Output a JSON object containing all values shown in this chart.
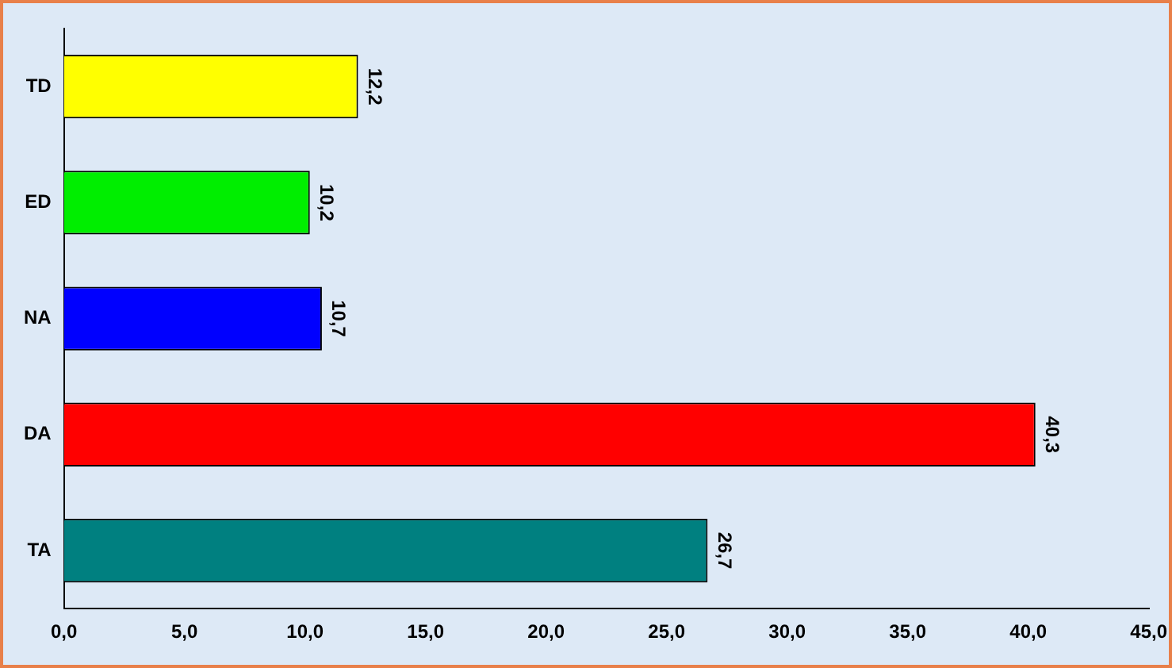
{
  "chart_data": {
    "type": "bar",
    "orientation": "horizontal",
    "categories": [
      "TD",
      "ED",
      "NA",
      "DA",
      "TA"
    ],
    "values": [
      12.2,
      10.2,
      10.7,
      40.3,
      26.7
    ],
    "colors": [
      "#ffff00",
      "#00ee00",
      "#0000ff",
      "#ff0000",
      "#008080"
    ],
    "value_labels": [
      "12,2",
      "10,2",
      "10,7",
      "40,3",
      "26,7"
    ],
    "xlim": [
      0,
      45
    ],
    "xticks": [
      {
        "value": 0,
        "label": "0,0"
      },
      {
        "value": 5,
        "label": "5,0"
      },
      {
        "value": 10,
        "label": "10,0"
      },
      {
        "value": 15,
        "label": "15,0"
      },
      {
        "value": 20,
        "label": "20,0"
      },
      {
        "value": 25,
        "label": "25,0"
      },
      {
        "value": 30,
        "label": "30,0"
      },
      {
        "value": 35,
        "label": "35,0"
      },
      {
        "value": 40,
        "label": "40,0"
      },
      {
        "value": 45,
        "label": "45,0"
      }
    ],
    "grid": false,
    "legend": false
  }
}
